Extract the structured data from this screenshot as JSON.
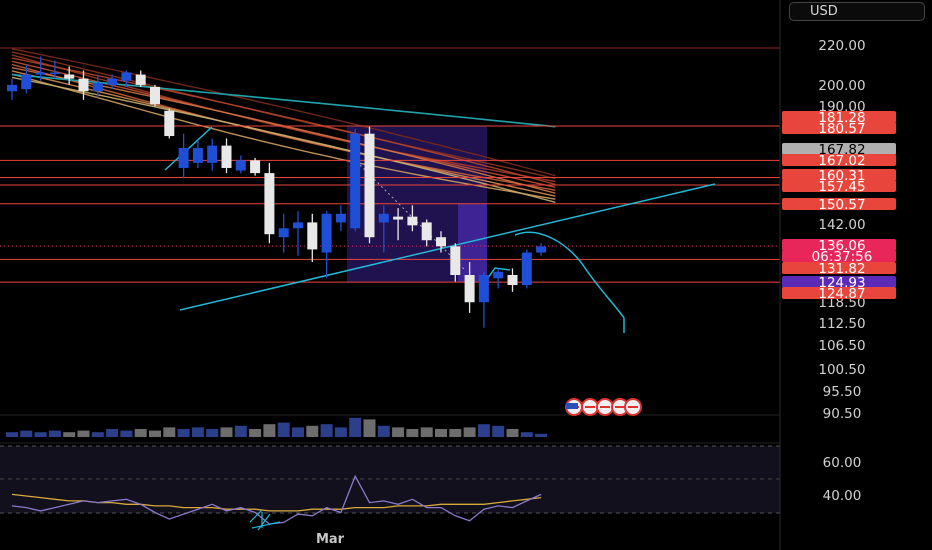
{
  "currency_button": {
    "label": "USD"
  },
  "time_axis": {
    "labels": [
      "Mar"
    ]
  },
  "price_axis": {
    "ticks": [
      "220.00",
      "200.00",
      "190.00",
      "142.00",
      "118.50",
      "112.50",
      "106.50",
      "100.50",
      "95.50",
      "90.50"
    ]
  },
  "price_tags": [
    {
      "label": "181.28",
      "bg": "#e8463c",
      "fg": "#ffffff"
    },
    {
      "label": "180.57",
      "bg": "#e8463c",
      "fg": "#ffffff"
    },
    {
      "label": "167.82",
      "bg": "#b0b0b0",
      "fg": "#000000"
    },
    {
      "label": "167.02",
      "bg": "#e8463c",
      "fg": "#ffffff"
    },
    {
      "label": "160.31",
      "bg": "#e8463c",
      "fg": "#ffffff"
    },
    {
      "label": "157.45",
      "bg": "#e8463c",
      "fg": "#ffffff"
    },
    {
      "label": "150.57",
      "bg": "#e8463c",
      "fg": "#ffffff"
    },
    {
      "label": "136.06",
      "bg": "#e8265a",
      "fg": "#ffffff"
    },
    {
      "label": "06:37:56",
      "bg": "#e8265a",
      "fg": "#ffffff"
    },
    {
      "label": "131.82",
      "bg": "#e8463c",
      "fg": "#ffffff"
    },
    {
      "label": "124.93",
      "bg": "#5b2bb8",
      "fg": "#ffffff"
    },
    {
      "label": "124.87",
      "bg": "#e8463c",
      "fg": "#ffffff"
    }
  ],
  "rsi_axis": {
    "ticks": [
      "60.00",
      "40.00"
    ]
  },
  "colors": {
    "bull": "#1f4fd6",
    "bear": "#e8e8e8",
    "level_line": "#e8463c",
    "trendline": "#22b8d6",
    "rsi_line": "#8a78c8",
    "rsi_ma": "#d7a93a",
    "zone": "#3b1f8f",
    "volume_blue": "#2b3f8a",
    "volume_grey": "#6d6d6d"
  },
  "chart_data": {
    "type": "candlestick",
    "title": "",
    "y_scale": "log",
    "ylim": [
      88,
      230
    ],
    "candles": [
      {
        "o": 197,
        "h": 203,
        "l": 193,
        "c": 200
      },
      {
        "o": 198,
        "h": 210,
        "l": 196,
        "c": 205
      },
      {
        "o": 205,
        "h": 214,
        "l": 202,
        "c": 206
      },
      {
        "o": 206,
        "h": 212,
        "l": 203,
        "c": 206
      },
      {
        "o": 205,
        "h": 209,
        "l": 200,
        "c": 203
      },
      {
        "o": 203,
        "h": 207,
        "l": 193,
        "c": 197
      },
      {
        "o": 197,
        "h": 205,
        "l": 194,
        "c": 201
      },
      {
        "o": 200,
        "h": 205,
        "l": 198,
        "c": 203
      },
      {
        "o": 202,
        "h": 207,
        "l": 199,
        "c": 206
      },
      {
        "o": 205,
        "h": 207,
        "l": 199,
        "c": 200
      },
      {
        "o": 199,
        "h": 200,
        "l": 190,
        "c": 191
      },
      {
        "o": 188,
        "h": 189,
        "l": 176,
        "c": 177
      },
      {
        "o": 164,
        "h": 178,
        "l": 160,
        "c": 172
      },
      {
        "o": 166,
        "h": 175,
        "l": 164,
        "c": 172
      },
      {
        "o": 166,
        "h": 176,
        "l": 163,
        "c": 173
      },
      {
        "o": 173,
        "h": 176,
        "l": 162,
        "c": 164
      },
      {
        "o": 163,
        "h": 169,
        "l": 162,
        "c": 167
      },
      {
        "o": 167,
        "h": 168,
        "l": 161,
        "c": 162
      },
      {
        "o": 162,
        "h": 166,
        "l": 137,
        "c": 140
      },
      {
        "o": 139,
        "h": 147,
        "l": 134,
        "c": 142
      },
      {
        "o": 142,
        "h": 148,
        "l": 133,
        "c": 144
      },
      {
        "o": 144,
        "h": 147,
        "l": 131,
        "c": 135
      },
      {
        "o": 134,
        "h": 148,
        "l": 126,
        "c": 147
      },
      {
        "o": 144,
        "h": 150,
        "l": 141,
        "c": 147
      },
      {
        "o": 142,
        "h": 180,
        "l": 141,
        "c": 178
      },
      {
        "o": 178,
        "h": 181,
        "l": 137,
        "c": 139
      },
      {
        "o": 144,
        "h": 150,
        "l": 134,
        "c": 147
      },
      {
        "o": 146,
        "h": 149,
        "l": 138,
        "c": 145
      },
      {
        "o": 146,
        "h": 150,
        "l": 141,
        "c": 143
      },
      {
        "o": 144,
        "h": 145,
        "l": 136,
        "c": 138
      },
      {
        "o": 139,
        "h": 141,
        "l": 134,
        "c": 136
      },
      {
        "o": 136,
        "h": 137,
        "l": 125,
        "c": 127
      },
      {
        "o": 127,
        "h": 131,
        "l": 116,
        "c": 119
      },
      {
        "o": 119,
        "h": 128,
        "l": 112,
        "c": 127
      },
      {
        "o": 126,
        "h": 129,
        "l": 123,
        "c": 128
      },
      {
        "o": 127,
        "h": 129,
        "l": 122,
        "c": 124
      },
      {
        "o": 124,
        "h": 135,
        "l": 123,
        "c": 134
      },
      {
        "o": 134,
        "h": 137,
        "l": 133,
        "c": 136
      }
    ],
    "horizontal_levels": [
      181.28,
      167.02,
      160.31,
      157.45,
      150.57,
      131.82,
      124.87
    ],
    "last_price": 136.06,
    "volume": [
      3,
      4,
      3,
      4,
      3,
      4,
      3,
      5,
      4,
      5,
      4,
      6,
      5,
      6,
      5,
      6,
      7,
      5,
      8,
      9,
      6,
      7,
      8,
      6,
      12,
      11,
      7,
      6,
      5,
      6,
      5,
      5,
      6,
      8,
      7,
      5,
      3,
      2
    ],
    "rsi": [
      34,
      33,
      31,
      33,
      35,
      37,
      36,
      37,
      38,
      35,
      30,
      26,
      29,
      32,
      35,
      31,
      33,
      30,
      23,
      24,
      29,
      28,
      33,
      30,
      52,
      36,
      37,
      35,
      38,
      33,
      33,
      28,
      25,
      32,
      34,
      33,
      37,
      41
    ],
    "rsi_ma": [
      41,
      40,
      39,
      38,
      37,
      37,
      36,
      36,
      35,
      35,
      34,
      34,
      33,
      33,
      33,
      32,
      32,
      32,
      31,
      31,
      31,
      32,
      32,
      32,
      33,
      33,
      33,
      34,
      34,
      34,
      35,
      35,
      35,
      35,
      36,
      37,
      38,
      39
    ],
    "rsi_ticks": [
      60,
      40
    ],
    "x_labels": [
      "Mar"
    ]
  }
}
